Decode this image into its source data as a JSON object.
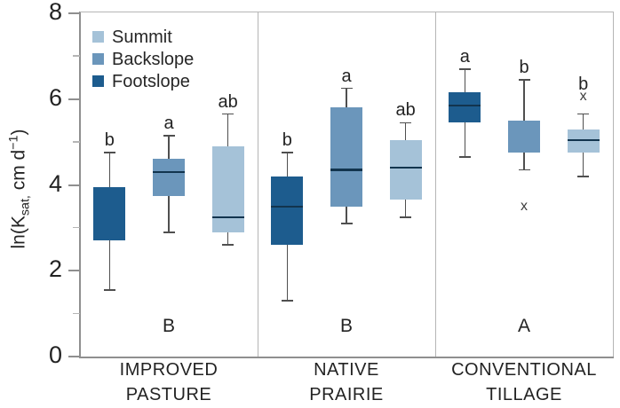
{
  "colors": {
    "axis": "#8f8f8f",
    "frame": "#b5b5b5",
    "whisker": "#4f4f4f",
    "median": "#12344e",
    "text": "#232323",
    "outlier": "#3d3d3d"
  },
  "chart_data": {
    "type": "boxplot",
    "title": "",
    "ylabel": {
      "prefix": "ln(K",
      "sub": "sat,",
      "mid": " cm d",
      "sup": "−1",
      "suffix": ")"
    },
    "ylim": [
      0,
      8
    ],
    "major_yticks": [
      0,
      2,
      4,
      6,
      8
    ],
    "minor_yticks": [
      1,
      3,
      5,
      7
    ],
    "legend": {
      "position": "top-left",
      "items": [
        {
          "label": "Summit",
          "color": "#a5c2d8"
        },
        {
          "label": "Backslope",
          "color": "#6b96bb"
        },
        {
          "label": "Footslope",
          "color": "#1d5c8e"
        }
      ]
    },
    "series_order": [
      "Footslope",
      "Backslope",
      "Summit"
    ],
    "outlier_marker": "x",
    "groups": [
      {
        "label_line1": "IMPROVED",
        "label_line2": "PASTURE",
        "group_letter": "B",
        "boxes": [
          {
            "series": "Footslope",
            "letter": "b",
            "whisker_low": 1.55,
            "q1": 2.7,
            "median": null,
            "q3": 3.95,
            "whisker_high": 4.75,
            "outliers": []
          },
          {
            "series": "Backslope",
            "letter": "a",
            "whisker_low": 2.9,
            "q1": 3.75,
            "median": 4.3,
            "q3": 4.6,
            "whisker_high": 5.15,
            "outliers": []
          },
          {
            "series": "Summit",
            "letter": "ab",
            "whisker_low": 2.6,
            "q1": 2.9,
            "median": 3.25,
            "q3": 4.9,
            "whisker_high": 5.65,
            "outliers": []
          }
        ]
      },
      {
        "label_line1": "NATIVE",
        "label_line2": "PRAIRIE",
        "group_letter": "B",
        "boxes": [
          {
            "series": "Footslope",
            "letter": "b",
            "whisker_low": 1.3,
            "q1": 2.6,
            "median": 3.5,
            "q3": 4.2,
            "whisker_high": 4.75,
            "outliers": []
          },
          {
            "series": "Backslope",
            "letter": "a",
            "whisker_low": 3.1,
            "q1": 3.5,
            "median": 4.35,
            "q3": 5.8,
            "whisker_high": 6.25,
            "outliers": []
          },
          {
            "series": "Summit",
            "letter": "ab",
            "whisker_low": 3.25,
            "q1": 3.65,
            "median": 4.4,
            "q3": 5.05,
            "whisker_high": 5.45,
            "outliers": []
          }
        ]
      },
      {
        "label_line1": "CONVENTIONAL",
        "label_line2": "TILLAGE",
        "group_letter": "A",
        "boxes": [
          {
            "series": "Footslope",
            "letter": "a",
            "whisker_low": 4.65,
            "q1": 5.45,
            "median": 5.85,
            "q3": 6.15,
            "whisker_high": 6.7,
            "outliers": []
          },
          {
            "series": "Backslope",
            "letter": "b",
            "whisker_low": 4.35,
            "q1": 4.75,
            "median": null,
            "q3": 5.5,
            "whisker_high": 6.45,
            "outliers": [
              3.5
            ]
          },
          {
            "series": "Summit",
            "letter": "b",
            "whisker_low": 4.2,
            "q1": 4.75,
            "median": 5.05,
            "q3": 5.3,
            "whisker_high": 5.65,
            "outliers": [
              6.05
            ]
          }
        ]
      }
    ]
  }
}
